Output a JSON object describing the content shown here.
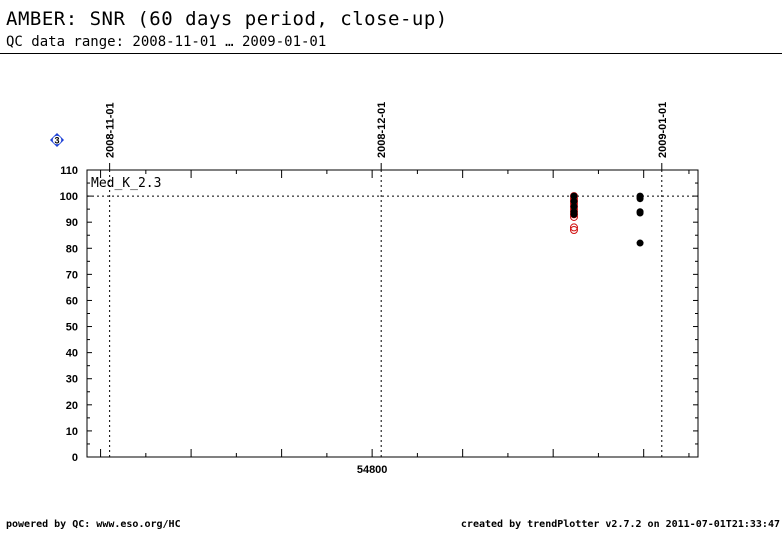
{
  "header": {
    "title": "AMBER: SNR (60 days period, close-up)",
    "subtitle": "QC data range: 2008-11-01 … 2009-01-01"
  },
  "footer": {
    "left": "powered by QC: www.eso.org/HC",
    "right": "created by trendPlotter v2.7.2 on 2011-07-01T21:33:47"
  },
  "badge": {
    "label": "3",
    "color": "#1a3fd6"
  },
  "chart_data": {
    "type": "scatter",
    "panel_label": "Med_K_2.3",
    "ylim": [
      0,
      110
    ],
    "yticks": [
      0,
      10,
      20,
      30,
      40,
      50,
      60,
      70,
      80,
      90,
      100,
      110
    ],
    "xlim": [
      54768.5,
      54836
    ],
    "xticks_labeled": [
      {
        "value": 54800,
        "label": "54800"
      }
    ],
    "date_markers": [
      {
        "label": "2008-11-01",
        "value": 54771
      },
      {
        "label": "2008-12-01",
        "value": 54801
      },
      {
        "label": "2009-01-01",
        "value": 54832
      }
    ],
    "reference_line": 100,
    "grid": false,
    "series": [
      {
        "color": "#d01010",
        "marker": "open-circle",
        "points": [
          [
            54822.3,
            100
          ],
          [
            54822.3,
            99
          ],
          [
            54822.3,
            98
          ],
          [
            54822.3,
            97
          ],
          [
            54822.3,
            96
          ],
          [
            54822.3,
            95
          ],
          [
            54822.3,
            94
          ],
          [
            54822.3,
            93
          ],
          [
            54822.3,
            92
          ],
          [
            54822.3,
            88
          ],
          [
            54822.3,
            87
          ]
        ]
      },
      {
        "color": "#000000",
        "marker": "filled-circle",
        "points": [
          [
            54822.3,
            100
          ],
          [
            54822.3,
            98
          ],
          [
            54822.3,
            96
          ],
          [
            54822.3,
            94
          ],
          [
            54822.3,
            93
          ],
          [
            54829.6,
            100
          ],
          [
            54829.6,
            99.5
          ],
          [
            54829.6,
            99
          ],
          [
            54829.6,
            94
          ],
          [
            54829.6,
            93.5
          ],
          [
            54829.6,
            82
          ]
        ]
      }
    ]
  }
}
